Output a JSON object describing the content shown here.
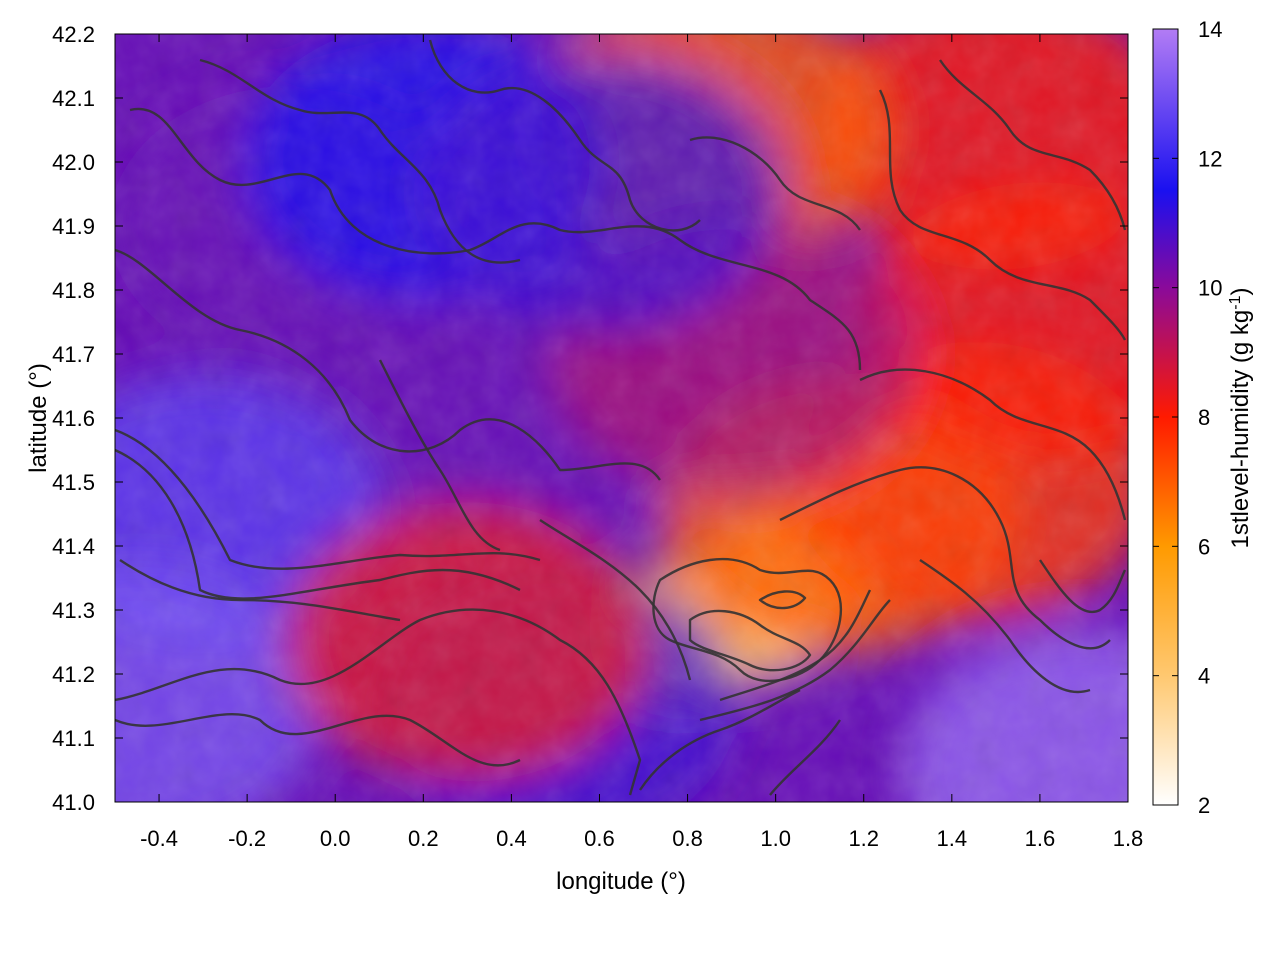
{
  "chart_data": {
    "type": "heatmap",
    "title": "",
    "xlabel": "longitude (°)",
    "ylabel": "latitude (°)",
    "colorbar_label": "1stlevel-humidity (g kg^-1)",
    "xlim": [
      -0.5,
      1.8
    ],
    "ylim": [
      41.0,
      42.2
    ],
    "x_ticks": [
      "-0.4",
      "-0.2",
      "0.0",
      "0.2",
      "0.4",
      "0.6",
      "0.8",
      "1.0",
      "1.2",
      "1.4",
      "1.6",
      "1.8"
    ],
    "x_tick_values": [
      -0.4,
      -0.2,
      0.0,
      0.2,
      0.4,
      0.6,
      0.8,
      1.0,
      1.2,
      1.4,
      1.6,
      1.8
    ],
    "y_ticks": [
      "41.0",
      "41.1",
      "41.2",
      "41.3",
      "41.4",
      "41.5",
      "41.6",
      "41.7",
      "41.8",
      "41.9",
      "42.0",
      "42.1",
      "42.2"
    ],
    "y_tick_values": [
      41.0,
      41.1,
      41.2,
      41.3,
      41.4,
      41.5,
      41.6,
      41.7,
      41.8,
      41.9,
      42.0,
      42.1,
      42.2
    ],
    "colorbar_range": [
      2,
      14
    ],
    "colorbar_ticks": [
      "2",
      "4",
      "6",
      "8",
      "10",
      "12",
      "14"
    ],
    "colorbar_tick_values": [
      2,
      4,
      6,
      8,
      10,
      12,
      14
    ],
    "colormap_stops": [
      {
        "value": 2,
        "color": "#ffffff"
      },
      {
        "value": 4,
        "color": "#ffc870"
      },
      {
        "value": 6,
        "color": "#ff9a00"
      },
      {
        "value": 8,
        "color": "#ff1a00"
      },
      {
        "value": 10,
        "color": "#8a0a9a"
      },
      {
        "value": 11.5,
        "color": "#1a10f0"
      },
      {
        "value": 14,
        "color": "#b27cf4"
      }
    ],
    "field_features": [
      {
        "lon": 0.95,
        "lat": 41.3,
        "value": 3.5
      },
      {
        "lon": 0.78,
        "lat": 41.26,
        "value": 4.5
      },
      {
        "lon": 1.05,
        "lat": 41.36,
        "value": 5.0
      },
      {
        "lon": 1.15,
        "lat": 41.45,
        "value": 7.0
      },
      {
        "lon": 1.45,
        "lat": 41.5,
        "value": 7.5
      },
      {
        "lon": 1.6,
        "lat": 41.75,
        "value": 8.0
      },
      {
        "lon": 1.5,
        "lat": 42.05,
        "value": 8.0
      },
      {
        "lon": 0.85,
        "lat": 42.05,
        "value": 7.0
      },
      {
        "lon": 0.4,
        "lat": 41.6,
        "value": 10.5
      },
      {
        "lon": -0.1,
        "lat": 41.9,
        "value": 10.5
      },
      {
        "lon": -0.3,
        "lat": 41.45,
        "value": 12.5
      },
      {
        "lon": -0.45,
        "lat": 41.15,
        "value": 13.0
      },
      {
        "lon": 1.7,
        "lat": 41.05,
        "value": 13.5
      },
      {
        "lon": 0.5,
        "lat": 41.15,
        "value": 11.0
      },
      {
        "lon": 0.3,
        "lat": 41.25,
        "value": 8.5
      },
      {
        "lon": 0.9,
        "lat": 41.7,
        "value": 9.5
      },
      {
        "lon": 0.2,
        "lat": 42.0,
        "value": 11.5
      },
      {
        "lon": 0.6,
        "lat": 41.95,
        "value": 11.0
      }
    ],
    "grid": false,
    "legend": "colorbar-right"
  }
}
